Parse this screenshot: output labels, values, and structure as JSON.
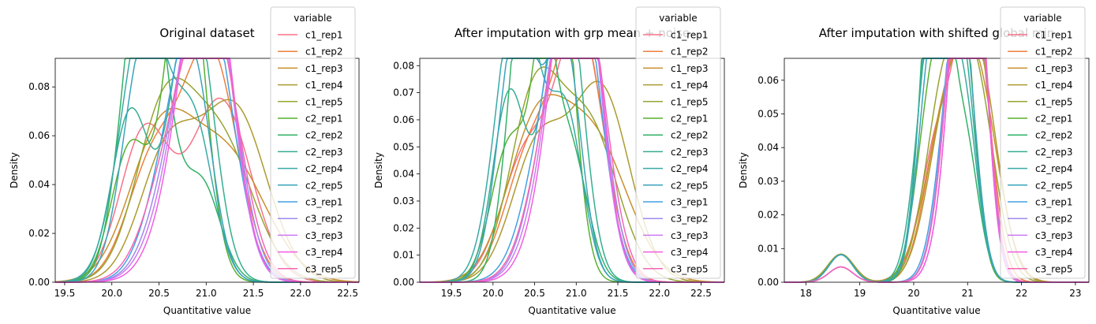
{
  "legend_title": "variable",
  "series_names": [
    "c1_rep1",
    "c1_rep2",
    "c1_rep3",
    "c1_rep4",
    "c1_rep5",
    "c2_rep1",
    "c2_rep2",
    "c2_rep3",
    "c2_rep4",
    "c2_rep5",
    "c3_rep1",
    "c3_rep2",
    "c3_rep3",
    "c3_rep4",
    "c3_rep5"
  ],
  "series_colors": [
    "#f77189",
    "#ee7f3d",
    "#c98f2e",
    "#ad9a31",
    "#97a431",
    "#59b031",
    "#32b166",
    "#35ad90",
    "#38aaa5",
    "#3ba3bc",
    "#44a0e2",
    "#9f8aed",
    "#cc79f2",
    "#f15ee2",
    "#f665b4"
  ],
  "chart_data": [
    {
      "type": "line",
      "title": "Original dataset",
      "xlabel": "Quantitative value",
      "ylabel": "Density",
      "xlim": [
        19.4,
        22.62
      ],
      "ylim": [
        0,
        0.0917
      ],
      "xticks": [
        19.5,
        20.0,
        20.5,
        21.0,
        21.5,
        22.0,
        22.5
      ],
      "xtick_labels": [
        "19.5",
        "20.0",
        "20.5",
        "21.0",
        "21.5",
        "22.0",
        "22.5"
      ],
      "yticks": [
        0,
        0.02,
        0.04,
        0.06,
        0.08
      ],
      "ytick_labels": [
        "0.00",
        "0.02",
        "0.04",
        "0.06",
        "0.08"
      ],
      "series": [
        {
          "name": "c1_rep1",
          "components": [
            [
              20.35,
              0.26,
              0.4
            ],
            [
              21.15,
              0.32,
              0.6
            ]
          ]
        },
        {
          "name": "c1_rep2",
          "components": [
            [
              20.45,
              0.28,
              0.35
            ],
            [
              21.05,
              0.28,
              0.65
            ]
          ]
        },
        {
          "name": "c1_rep3",
          "components": [
            [
              20.5,
              0.33,
              0.45
            ],
            [
              21.2,
              0.42,
              0.55
            ]
          ]
        },
        {
          "name": "c1_rep4",
          "components": [
            [
              20.6,
              0.3,
              0.4
            ],
            [
              21.3,
              0.34,
              0.6
            ]
          ]
        },
        {
          "name": "c1_rep5",
          "components": [
            [
              20.55,
              0.3,
              0.5
            ],
            [
              21.15,
              0.35,
              0.5
            ]
          ]
        },
        {
          "name": "c2_rep1",
          "components": [
            [
              20.2,
              0.2,
              0.28
            ],
            [
              20.78,
              0.2,
              0.72
            ]
          ]
        },
        {
          "name": "c2_rep2",
          "components": [
            [
              20.35,
              0.22,
              0.8
            ],
            [
              20.95,
              0.2,
              0.2
            ]
          ]
        },
        {
          "name": "c2_rep3",
          "components": [
            [
              20.2,
              0.2,
              0.35
            ],
            [
              20.85,
              0.22,
              0.65
            ]
          ]
        },
        {
          "name": "c2_rep4",
          "components": [
            [
              20.35,
              0.25,
              0.7
            ],
            [
              20.88,
              0.2,
              0.3
            ]
          ]
        },
        {
          "name": "c2_rep5",
          "components": [
            [
              20.35,
              0.22,
              0.55
            ],
            [
              20.85,
              0.2,
              0.45
            ]
          ]
        },
        {
          "name": "c3_rep1",
          "components": [
            [
              20.7,
              0.28,
              0.4
            ],
            [
              21.05,
              0.26,
              0.6
            ]
          ]
        },
        {
          "name": "c3_rep2",
          "components": [
            [
              20.8,
              0.3,
              0.5
            ],
            [
              21.1,
              0.25,
              0.5
            ]
          ]
        },
        {
          "name": "c3_rep3",
          "components": [
            [
              20.8,
              0.3,
              0.4
            ],
            [
              21.05,
              0.24,
              0.6
            ]
          ]
        },
        {
          "name": "c3_rep4",
          "components": [
            [
              20.85,
              0.3,
              0.4
            ],
            [
              21.05,
              0.24,
              0.6
            ]
          ]
        },
        {
          "name": "c3_rep5",
          "components": [
            [
              20.7,
              0.3,
              0.4
            ],
            [
              21.1,
              0.27,
              0.6
            ]
          ]
        }
      ]
    },
    {
      "type": "line",
      "title": "After imputation with grp mean + noise",
      "xlabel": "Quantitative value",
      "ylabel": "Density",
      "xlim": [
        19.12,
        22.78
      ],
      "ylim": [
        0,
        0.0827
      ],
      "xticks": [
        19.5,
        20.0,
        20.5,
        21.0,
        21.5,
        22.0,
        22.5
      ],
      "xtick_labels": [
        "19.5",
        "20.0",
        "20.5",
        "21.0",
        "21.5",
        "22.0",
        "22.5"
      ],
      "yticks": [
        0,
        0.01,
        0.02,
        0.03,
        0.04,
        0.05,
        0.06,
        0.07,
        0.08
      ],
      "ytick_labels": [
        "0.00",
        "0.01",
        "0.02",
        "0.03",
        "0.04",
        "0.05",
        "0.06",
        "0.07",
        "0.08"
      ],
      "series": [
        {
          "name": "c1_rep1",
          "components": [
            [
              20.4,
              0.3,
              0.35
            ],
            [
              21.05,
              0.28,
              0.65
            ]
          ]
        },
        {
          "name": "c1_rep2",
          "components": [
            [
              20.45,
              0.3,
              0.35
            ],
            [
              21.05,
              0.28,
              0.65
            ]
          ]
        },
        {
          "name": "c1_rep3",
          "components": [
            [
              20.5,
              0.35,
              0.45
            ],
            [
              21.2,
              0.42,
              0.55
            ]
          ]
        },
        {
          "name": "c1_rep4",
          "components": [
            [
              20.55,
              0.32,
              0.4
            ],
            [
              21.3,
              0.34,
              0.6
            ]
          ]
        },
        {
          "name": "c1_rep5",
          "components": [
            [
              20.5,
              0.3,
              0.5
            ],
            [
              21.15,
              0.35,
              0.5
            ]
          ]
        },
        {
          "name": "c2_rep1",
          "components": [
            [
              20.2,
              0.22,
              0.28
            ],
            [
              20.75,
              0.2,
              0.72
            ]
          ]
        },
        {
          "name": "c2_rep2",
          "components": [
            [
              20.45,
              0.22,
              0.78
            ],
            [
              20.95,
              0.2,
              0.22
            ]
          ]
        },
        {
          "name": "c2_rep3",
          "components": [
            [
              20.2,
              0.2,
              0.35
            ],
            [
              20.85,
              0.22,
              0.65
            ]
          ]
        },
        {
          "name": "c2_rep4",
          "components": [
            [
              20.3,
              0.25,
              0.7
            ],
            [
              20.88,
              0.2,
              0.3
            ]
          ]
        },
        {
          "name": "c2_rep5",
          "components": [
            [
              20.3,
              0.22,
              0.55
            ],
            [
              20.85,
              0.2,
              0.45
            ]
          ]
        },
        {
          "name": "c3_rep1",
          "components": [
            [
              20.7,
              0.3,
              0.4
            ],
            [
              21.05,
              0.26,
              0.6
            ]
          ]
        },
        {
          "name": "c3_rep2",
          "components": [
            [
              20.8,
              0.3,
              0.5
            ],
            [
              21.1,
              0.25,
              0.5
            ]
          ]
        },
        {
          "name": "c3_rep3",
          "components": [
            [
              20.8,
              0.3,
              0.4
            ],
            [
              21.05,
              0.24,
              0.6
            ]
          ]
        },
        {
          "name": "c3_rep4",
          "components": [
            [
              20.85,
              0.3,
              0.4
            ],
            [
              21.05,
              0.24,
              0.6
            ]
          ]
        },
        {
          "name": "c3_rep5",
          "components": [
            [
              20.75,
              0.3,
              0.4
            ],
            [
              21.1,
              0.27,
              0.6
            ]
          ]
        }
      ]
    },
    {
      "type": "line",
      "title": "After imputation with shifted global min",
      "xlabel": "Quantitative value",
      "ylabel": "Density",
      "xlim": [
        17.6,
        23.25
      ],
      "ylim": [
        0,
        0.0665
      ],
      "xticks": [
        18,
        19,
        20,
        21,
        22,
        23
      ],
      "xtick_labels": [
        "18",
        "19",
        "20",
        "21",
        "22",
        "23"
      ],
      "yticks": [
        0,
        0.01,
        0.02,
        0.03,
        0.04,
        0.05,
        0.06
      ],
      "ytick_labels": [
        "0.00",
        "0.01",
        "0.02",
        "0.03",
        "0.04",
        "0.05",
        "0.06"
      ],
      "series": [
        {
          "name": "c1_rep1",
          "components": [
            [
              18.65,
              0.24,
              0.05
            ],
            [
              20.45,
              0.32,
              0.33
            ],
            [
              21.1,
              0.3,
              0.62
            ]
          ]
        },
        {
          "name": "c1_rep2",
          "components": [
            [
              18.65,
              0.24,
              0.05
            ],
            [
              20.5,
              0.32,
              0.33
            ],
            [
              21.1,
              0.3,
              0.62
            ]
          ]
        },
        {
          "name": "c1_rep3",
          "components": [
            [
              18.65,
              0.24,
              0.05
            ],
            [
              20.6,
              0.4,
              0.45
            ],
            [
              21.2,
              0.38,
              0.5
            ]
          ]
        },
        {
          "name": "c1_rep4",
          "components": [
            [
              18.65,
              0.24,
              0.05
            ],
            [
              20.6,
              0.36,
              0.4
            ],
            [
              21.2,
              0.36,
              0.55
            ]
          ]
        },
        {
          "name": "c1_rep5",
          "components": [
            [
              18.65,
              0.24,
              0.05
            ],
            [
              20.55,
              0.34,
              0.45
            ],
            [
              21.15,
              0.35,
              0.5
            ]
          ]
        },
        {
          "name": "c2_rep1",
          "components": [
            [
              18.65,
              0.22,
              0.045
            ],
            [
              20.35,
              0.28,
              0.4
            ],
            [
              20.85,
              0.25,
              0.555
            ]
          ]
        },
        {
          "name": "c2_rep2",
          "components": [
            [
              18.65,
              0.22,
              0.045
            ],
            [
              20.4,
              0.25,
              0.7
            ],
            [
              20.95,
              0.25,
              0.255
            ]
          ]
        },
        {
          "name": "c2_rep3",
          "components": [
            [
              18.65,
              0.22,
              0.045
            ],
            [
              20.35,
              0.28,
              0.55
            ],
            [
              20.9,
              0.25,
              0.405
            ]
          ]
        },
        {
          "name": "c2_rep4",
          "components": [
            [
              18.65,
              0.22,
              0.045
            ],
            [
              20.38,
              0.26,
              0.62
            ],
            [
              20.92,
              0.25,
              0.335
            ]
          ]
        },
        {
          "name": "c2_rep5",
          "components": [
            [
              18.65,
              0.22,
              0.045
            ],
            [
              20.38,
              0.27,
              0.5
            ],
            [
              20.9,
              0.25,
              0.455
            ]
          ]
        },
        {
          "name": "c3_rep1",
          "components": [
            [
              18.65,
              0.22,
              0.025
            ],
            [
              20.75,
              0.3,
              0.4
            ],
            [
              21.1,
              0.27,
              0.575
            ]
          ]
        },
        {
          "name": "c3_rep2",
          "components": [
            [
              18.65,
              0.22,
              0.025
            ],
            [
              20.8,
              0.3,
              0.45
            ],
            [
              21.1,
              0.26,
              0.525
            ]
          ]
        },
        {
          "name": "c3_rep3",
          "components": [
            [
              18.65,
              0.22,
              0.025
            ],
            [
              20.85,
              0.3,
              0.4
            ],
            [
              21.08,
              0.25,
              0.575
            ]
          ]
        },
        {
          "name": "c3_rep4",
          "components": [
            [
              18.65,
              0.22,
              0.025
            ],
            [
              20.85,
              0.3,
              0.4
            ],
            [
              21.08,
              0.25,
              0.575
            ]
          ]
        },
        {
          "name": "c3_rep5",
          "components": [
            [
              18.65,
              0.22,
              0.025
            ],
            [
              20.8,
              0.3,
              0.4
            ],
            [
              21.1,
              0.27,
              0.575
            ]
          ]
        }
      ]
    }
  ]
}
